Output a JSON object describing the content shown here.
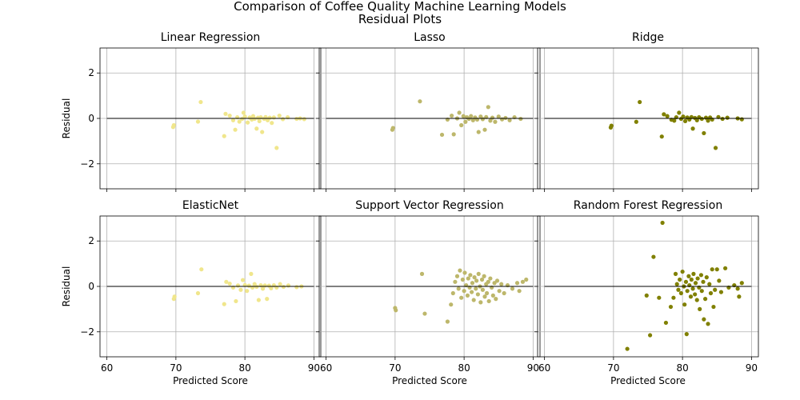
{
  "figure": {
    "title_line1": "Comparison of Coffee Quality Machine Learning Models",
    "title_line2": "Residual Plots"
  },
  "chart_data": [
    {
      "type": "scatter",
      "title": "Linear Regression",
      "xlabel": "",
      "ylabel": "Residual",
      "xlim": [
        59,
        91
      ],
      "ylim": [
        -3.1,
        3.1
      ],
      "x_ticks": [
        "60",
        "70",
        "80",
        "90"
      ],
      "y_ticks": [
        "2",
        "0",
        "−2"
      ],
      "show_x_ticklabels": false,
      "show_y_ticklabels": true,
      "grid": true,
      "zero_line": true,
      "color": "#f0e68c",
      "points": [
        [
          69.6,
          -0.38
        ],
        [
          69.7,
          -0.3
        ],
        [
          73.2,
          -0.14
        ],
        [
          73.6,
          0.72
        ],
        [
          77.0,
          -0.78
        ],
        [
          77.2,
          0.2
        ],
        [
          77.8,
          0.12
        ],
        [
          78.3,
          -0.08
        ],
        [
          78.6,
          -0.5
        ],
        [
          78.9,
          0.05
        ],
        [
          79.2,
          -0.14
        ],
        [
          79.6,
          -0.02
        ],
        [
          79.8,
          0.25
        ],
        [
          80.0,
          0.08
        ],
        [
          80.4,
          -0.18
        ],
        [
          80.7,
          0.04
        ],
        [
          81.0,
          -0.05
        ],
        [
          81.2,
          0.1
        ],
        [
          81.4,
          -0.02
        ],
        [
          81.7,
          -0.45
        ],
        [
          81.9,
          0.03
        ],
        [
          82.1,
          -0.12
        ],
        [
          82.3,
          0.05
        ],
        [
          82.5,
          -0.6
        ],
        [
          82.8,
          -0.02
        ],
        [
          83.0,
          0.06
        ],
        [
          83.3,
          -0.08
        ],
        [
          83.6,
          0.03
        ],
        [
          83.9,
          -0.2
        ],
        [
          84.2,
          0.04
        ],
        [
          84.6,
          -1.3
        ],
        [
          85.0,
          0.12
        ],
        [
          85.5,
          -0.03
        ],
        [
          86.2,
          0.05
        ],
        [
          87.5,
          -0.02
        ],
        [
          88.0,
          0.0
        ],
        [
          88.6,
          -0.03
        ]
      ]
    },
    {
      "type": "scatter",
      "title": "Lasso",
      "xlabel": "",
      "ylabel": "",
      "xlim": [
        59,
        91
      ],
      "ylim": [
        -3.1,
        3.1
      ],
      "x_ticks": [
        "60",
        "70",
        "80",
        "90"
      ],
      "y_ticks": [
        "2",
        "0",
        "−2"
      ],
      "show_x_ticklabels": false,
      "show_y_ticklabels": false,
      "grid": true,
      "zero_line": true,
      "color": "#bdb76b",
      "points": [
        [
          69.6,
          -0.5
        ],
        [
          69.7,
          -0.42
        ],
        [
          73.6,
          0.75
        ],
        [
          76.8,
          -0.72
        ],
        [
          77.6,
          -0.05
        ],
        [
          78.2,
          0.12
        ],
        [
          78.5,
          -0.7
        ],
        [
          79.0,
          0.0
        ],
        [
          79.3,
          0.25
        ],
        [
          79.6,
          -0.3
        ],
        [
          79.9,
          0.1
        ],
        [
          80.2,
          -0.15
        ],
        [
          80.4,
          0.05
        ],
        [
          80.7,
          -0.02
        ],
        [
          81.0,
          0.1
        ],
        [
          81.3,
          -0.08
        ],
        [
          81.6,
          0.04
        ],
        [
          81.9,
          -0.05
        ],
        [
          82.1,
          -0.6
        ],
        [
          82.4,
          0.08
        ],
        [
          82.7,
          -0.03
        ],
        [
          83.0,
          -0.5
        ],
        [
          83.2,
          0.06
        ],
        [
          83.5,
          0.5
        ],
        [
          83.8,
          -0.1
        ],
        [
          84.1,
          0.03
        ],
        [
          84.5,
          -0.15
        ],
        [
          85.0,
          0.08
        ],
        [
          85.5,
          -0.04
        ],
        [
          86.0,
          0.02
        ],
        [
          86.6,
          -0.08
        ],
        [
          87.3,
          0.05
        ],
        [
          88.2,
          -0.02
        ]
      ]
    },
    {
      "type": "scatter",
      "title": "Ridge",
      "xlabel": "",
      "ylabel": "",
      "xlim": [
        59,
        91
      ],
      "ylim": [
        -3.1,
        3.1
      ],
      "x_ticks": [
        "60",
        "70",
        "80",
        "90"
      ],
      "y_ticks": [
        "2",
        "0",
        "−2"
      ],
      "show_x_ticklabels": false,
      "show_y_ticklabels": false,
      "grid": true,
      "zero_line": true,
      "color": "#808000",
      "points": [
        [
          69.6,
          -0.4
        ],
        [
          69.7,
          -0.32
        ],
        [
          73.3,
          -0.15
        ],
        [
          73.8,
          0.72
        ],
        [
          77.0,
          -0.8
        ],
        [
          77.3,
          0.18
        ],
        [
          77.8,
          0.1
        ],
        [
          78.4,
          -0.06
        ],
        [
          78.8,
          -0.1
        ],
        [
          79.1,
          0.05
        ],
        [
          79.5,
          0.25
        ],
        [
          79.8,
          -0.02
        ],
        [
          80.1,
          0.08
        ],
        [
          80.4,
          -0.12
        ],
        [
          80.7,
          0.04
        ],
        [
          81.0,
          -0.05
        ],
        [
          81.3,
          0.06
        ],
        [
          81.5,
          -0.45
        ],
        [
          81.8,
          0.02
        ],
        [
          82.1,
          -0.08
        ],
        [
          82.4,
          0.05
        ],
        [
          82.8,
          -0.02
        ],
        [
          83.1,
          -0.65
        ],
        [
          83.4,
          0.03
        ],
        [
          83.7,
          -0.1
        ],
        [
          84.0,
          0.04
        ],
        [
          84.3,
          -0.05
        ],
        [
          84.8,
          -1.3
        ],
        [
          85.2,
          0.06
        ],
        [
          85.8,
          -0.02
        ],
        [
          86.5,
          0.03
        ],
        [
          88.0,
          0.0
        ],
        [
          88.6,
          -0.04
        ]
      ]
    },
    {
      "type": "scatter",
      "title": "ElasticNet",
      "xlabel": "Predicted Score",
      "ylabel": "Residual",
      "xlim": [
        59,
        91
      ],
      "ylim": [
        -3.1,
        3.1
      ],
      "x_ticks": [
        "60",
        "70",
        "80",
        "90"
      ],
      "y_ticks": [
        "2",
        "0",
        "−2"
      ],
      "show_x_ticklabels": true,
      "show_y_ticklabels": true,
      "grid": true,
      "zero_line": true,
      "color": "#f0e68c",
      "points": [
        [
          69.7,
          -0.55
        ],
        [
          69.8,
          -0.45
        ],
        [
          73.2,
          -0.3
        ],
        [
          73.7,
          0.75
        ],
        [
          77.0,
          -0.78
        ],
        [
          77.3,
          0.2
        ],
        [
          77.8,
          0.12
        ],
        [
          78.3,
          -0.05
        ],
        [
          78.7,
          -0.65
        ],
        [
          79.0,
          0.04
        ],
        [
          79.4,
          -0.15
        ],
        [
          79.7,
          0.28
        ],
        [
          80.0,
          0.06
        ],
        [
          80.3,
          -0.2
        ],
        [
          80.6,
          0.03
        ],
        [
          80.9,
          0.55
        ],
        [
          81.1,
          -0.05
        ],
        [
          81.4,
          0.1
        ],
        [
          81.7,
          -0.02
        ],
        [
          82.0,
          -0.6
        ],
        [
          82.3,
          0.05
        ],
        [
          82.6,
          -0.1
        ],
        [
          82.9,
          0.04
        ],
        [
          83.2,
          -0.55
        ],
        [
          83.5,
          0.03
        ],
        [
          83.8,
          -0.08
        ],
        [
          84.2,
          0.05
        ],
        [
          84.6,
          -0.05
        ],
        [
          85.1,
          0.1
        ],
        [
          85.6,
          -0.02
        ],
        [
          86.3,
          0.04
        ],
        [
          87.5,
          -0.03
        ],
        [
          88.2,
          0.0
        ]
      ]
    },
    {
      "type": "scatter",
      "title": "Support Vector Regression",
      "xlabel": "Predicted Score",
      "ylabel": "",
      "xlim": [
        59,
        91
      ],
      "ylim": [
        -3.1,
        3.1
      ],
      "x_ticks": [
        "60",
        "70",
        "80",
        "90"
      ],
      "y_ticks": [
        "2",
        "0",
        "−2"
      ],
      "show_x_ticklabels": true,
      "show_y_ticklabels": false,
      "grid": true,
      "zero_line": true,
      "color": "#bdb76b",
      "points": [
        [
          70.0,
          -0.95
        ],
        [
          70.1,
          -1.05
        ],
        [
          73.9,
          0.55
        ],
        [
          74.3,
          -1.2
        ],
        [
          77.6,
          -1.55
        ],
        [
          78.1,
          -0.8
        ],
        [
          78.4,
          -0.3
        ],
        [
          78.7,
          0.2
        ],
        [
          79.0,
          0.45
        ],
        [
          79.2,
          -0.1
        ],
        [
          79.4,
          0.7
        ],
        [
          79.6,
          -0.5
        ],
        [
          79.8,
          0.3
        ],
        [
          80.0,
          -0.2
        ],
        [
          80.1,
          0.6
        ],
        [
          80.3,
          0.05
        ],
        [
          80.5,
          -0.4
        ],
        [
          80.6,
          0.35
        ],
        [
          80.8,
          -0.05
        ],
        [
          80.9,
          0.5
        ],
        [
          81.1,
          -0.25
        ],
        [
          81.2,
          0.15
        ],
        [
          81.4,
          -0.6
        ],
        [
          81.5,
          0.4
        ],
        [
          81.7,
          -0.1
        ],
        [
          81.8,
          0.25
        ],
        [
          82.0,
          -0.35
        ],
        [
          82.1,
          0.55
        ],
        [
          82.3,
          0.0
        ],
        [
          82.4,
          -0.7
        ],
        [
          82.6,
          0.3
        ],
        [
          82.7,
          -0.15
        ],
        [
          82.9,
          0.45
        ],
        [
          83.0,
          -0.45
        ],
        [
          83.2,
          0.1
        ],
        [
          83.3,
          -0.3
        ],
        [
          83.5,
          0.2
        ],
        [
          83.6,
          -0.65
        ],
        [
          83.8,
          0.35
        ],
        [
          84.0,
          -0.05
        ],
        [
          84.2,
          -0.4
        ],
        [
          84.4,
          0.15
        ],
        [
          84.6,
          -0.55
        ],
        [
          84.8,
          0.25
        ],
        [
          85.1,
          -0.2
        ],
        [
          85.4,
          0.1
        ],
        [
          85.8,
          -0.3
        ],
        [
          86.3,
          0.05
        ],
        [
          87.0,
          -0.1
        ],
        [
          87.7,
          0.15
        ],
        [
          88.5,
          0.2
        ],
        [
          89.0,
          0.3
        ],
        [
          88.0,
          -0.2
        ]
      ]
    },
    {
      "type": "scatter",
      "title": "Random Forest Regression",
      "xlabel": "Predicted Score",
      "ylabel": "",
      "xlim": [
        59,
        91
      ],
      "ylim": [
        -3.1,
        3.1
      ],
      "x_ticks": [
        "60",
        "70",
        "80",
        "90"
      ],
      "y_ticks": [
        "2",
        "0",
        "−2"
      ],
      "show_x_ticklabels": true,
      "show_y_ticklabels": false,
      "grid": true,
      "zero_line": true,
      "color": "#808000",
      "points": [
        [
          72.0,
          -2.75
        ],
        [
          74.8,
          -0.4
        ],
        [
          75.3,
          -2.15
        ],
        [
          75.8,
          1.3
        ],
        [
          76.6,
          -0.5
        ],
        [
          77.1,
          2.8
        ],
        [
          77.6,
          -1.6
        ],
        [
          78.3,
          -0.9
        ],
        [
          78.7,
          -0.5
        ],
        [
          79.0,
          0.55
        ],
        [
          79.2,
          0.1
        ],
        [
          79.4,
          -0.15
        ],
        [
          79.6,
          0.3
        ],
        [
          79.8,
          -0.3
        ],
        [
          80.0,
          0.65
        ],
        [
          80.2,
          0.0
        ],
        [
          80.3,
          -0.8
        ],
        [
          80.5,
          0.2
        ],
        [
          80.6,
          -2.1
        ],
        [
          80.7,
          -0.2
        ],
        [
          80.9,
          0.45
        ],
        [
          81.0,
          0.05
        ],
        [
          81.2,
          -0.45
        ],
        [
          81.3,
          0.3
        ],
        [
          81.5,
          -0.1
        ],
        [
          81.6,
          0.55
        ],
        [
          81.8,
          -0.35
        ],
        [
          81.9,
          0.15
        ],
        [
          82.1,
          -0.6
        ],
        [
          82.2,
          0.35
        ],
        [
          82.4,
          -0.05
        ],
        [
          82.5,
          -1.0
        ],
        [
          82.7,
          0.5
        ],
        [
          82.8,
          -0.2
        ],
        [
          83.0,
          0.2
        ],
        [
          83.1,
          -1.45
        ],
        [
          83.3,
          -0.55
        ],
        [
          83.5,
          0.4
        ],
        [
          83.7,
          -1.65
        ],
        [
          83.9,
          0.1
        ],
        [
          84.1,
          -0.3
        ],
        [
          84.3,
          0.75
        ],
        [
          84.5,
          -0.9
        ],
        [
          84.7,
          -0.15
        ],
        [
          85.0,
          0.75
        ],
        [
          85.3,
          0.25
        ],
        [
          85.6,
          -0.25
        ],
        [
          86.2,
          0.8
        ],
        [
          86.7,
          -0.05
        ],
        [
          87.5,
          0.05
        ],
        [
          88.2,
          -0.45
        ],
        [
          88.6,
          0.15
        ],
        [
          88.0,
          -0.1
        ]
      ]
    }
  ]
}
